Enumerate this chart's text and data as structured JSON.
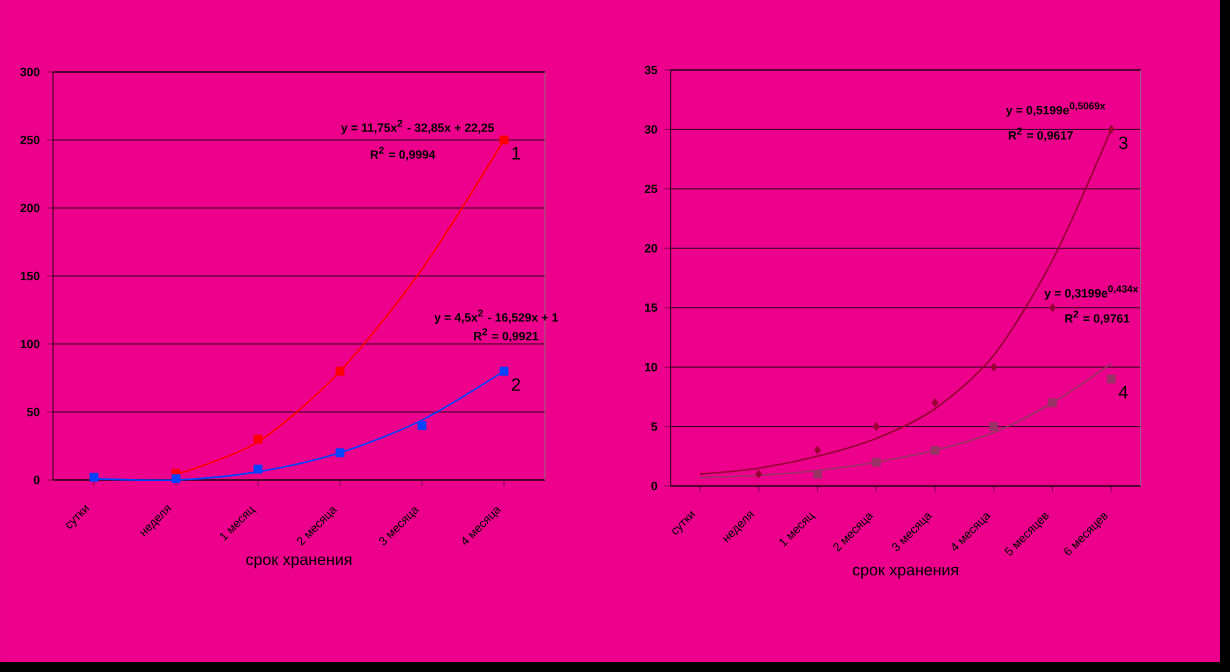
{
  "chart_data": [
    {
      "type": "scatter",
      "xlabel": "срок хранения",
      "categories": [
        "сутки",
        "неделя",
        "1 месяц",
        "2 месяца",
        "3 месяца",
        "4 месяца"
      ],
      "ylim": [
        0,
        300
      ],
      "yticks": [
        0,
        50,
        100,
        150,
        200,
        250,
        300
      ],
      "grid": "y",
      "annotations": [
        "y = 11,75x$^{2}$ - 32,85x + 22,25",
        "R$^{2}$ = 0,9994",
        "y = 4,5x$^{2}$ - 16,529x + 1",
        "R$^{2}$ = 0,9921"
      ],
      "series": [
        {
          "name": "1",
          "color": "#ff0000",
          "marker": "square",
          "values": [
            null,
            5,
            30,
            80,
            null,
            250
          ]
        },
        {
          "name": "2",
          "color": "#0044ff",
          "marker": "square",
          "values": [
            2,
            1,
            8,
            20,
            40,
            80
          ]
        },
        {
          "type": "line",
          "color": "#ff0000",
          "marker": "none",
          "values": [
            null,
            4,
            28,
            80,
            155,
            250
          ]
        },
        {
          "type": "line",
          "color": "#0044ff",
          "marker": "none",
          "values": [
            1,
            0,
            6,
            20,
            44,
            80
          ]
        }
      ]
    },
    {
      "type": "scatter",
      "xlabel": "срок хранения",
      "categories": [
        "сутки",
        "неделя",
        "1 месяц",
        "2 месяца",
        "3 месяца",
        "4 месяца",
        "5 месяцев",
        "6 месяцев"
      ],
      "ylim": [
        0,
        35
      ],
      "yticks": [
        0,
        5,
        10,
        15,
        20,
        25,
        30,
        35
      ],
      "grid": "y",
      "annotations": [
        "y = 0,5199e$^{0,5069x}$",
        "R$^{2}$ = 0,9617",
        "y = 0,3199e$^{0,434x}$",
        "R$^{2}$ = 0,9761"
      ],
      "series": [
        {
          "name": "3",
          "color": "#990033",
          "marker": "diamond",
          "values": [
            null,
            1,
            3,
            5,
            7,
            10,
            15,
            30
          ]
        },
        {
          "name": "4",
          "color": "#993366",
          "marker": "square",
          "values": [
            null,
            null,
            1,
            2,
            3,
            5,
            7,
            9
          ]
        },
        {
          "type": "line",
          "color": "#990033",
          "marker": "none",
          "values": [
            1,
            1.5,
            2.5,
            4,
            6.5,
            11,
            19,
            30
          ]
        },
        {
          "type": "line",
          "color": "#993366",
          "marker": "none",
          "values": [
            0.7,
            0.9,
            1.3,
            2,
            3,
            4.5,
            7,
            10.3
          ]
        }
      ]
    }
  ]
}
